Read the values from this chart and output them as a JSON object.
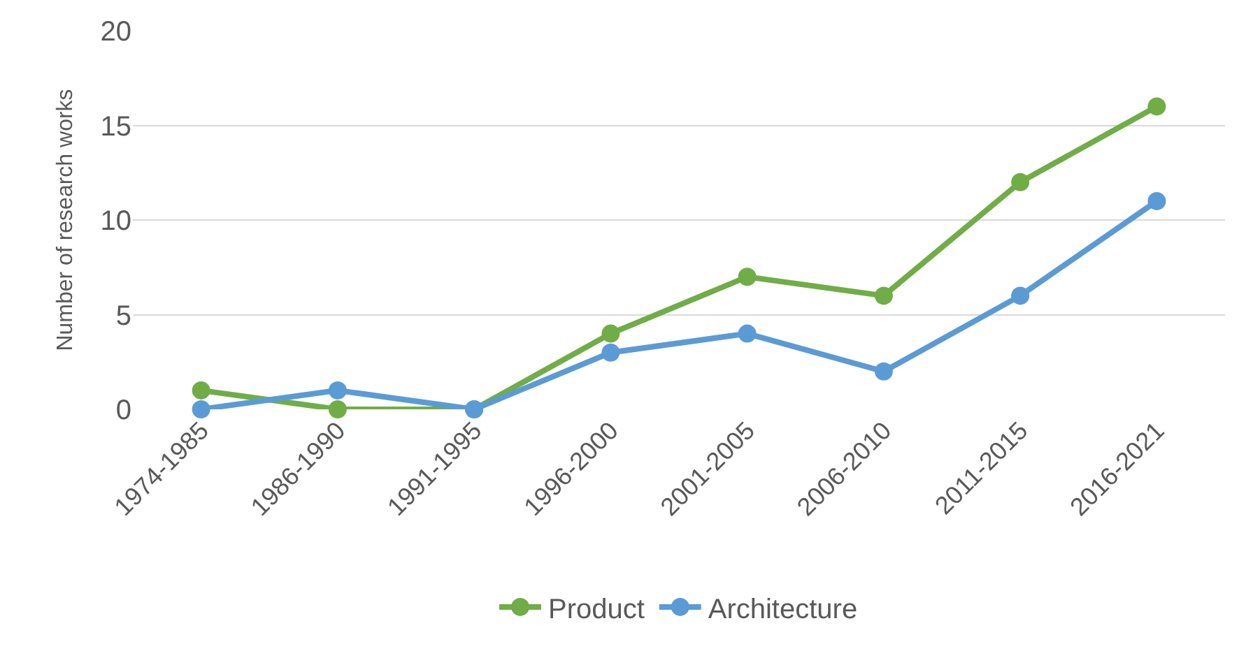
{
  "chart_data": {
    "type": "line",
    "ylabel": "Number of research works",
    "categories": [
      "1974-1985",
      "1986-1990",
      "1991-1995",
      "1996-2000",
      "2001-2005",
      "2006-2010",
      "2011-2015",
      "2016-2021"
    ],
    "series": [
      {
        "name": "Product",
        "color": "#70ad47",
        "values": [
          1,
          0,
          0,
          4,
          7,
          6,
          12,
          16
        ]
      },
      {
        "name": "Architecture",
        "color": "#5b9bd5",
        "values": [
          0,
          1,
          0,
          3,
          4,
          2,
          6,
          11
        ]
      }
    ],
    "ylim": [
      0,
      20
    ],
    "yticks": [
      0,
      5,
      10,
      15,
      20
    ],
    "grid": "y",
    "legend": "bottom",
    "marker": "circle",
    "line_style": "solid"
  }
}
